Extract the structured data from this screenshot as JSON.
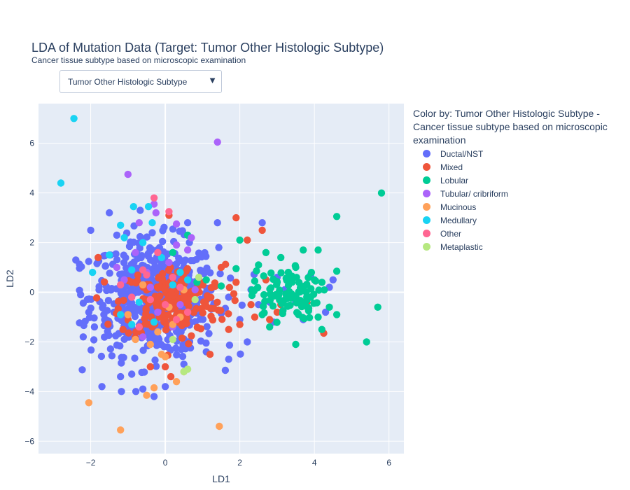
{
  "title": "LDA of Mutation Data (Target: Tumor Other Histologic Subtype)",
  "subtitle": "Cancer tissue subtype based on microscopic examination",
  "dropdown": {
    "selected": "Tumor Other Histologic Subtype",
    "icon": "triangle-down-icon"
  },
  "legend_title": "Color by: Tumor Other Histologic Subtype - Cancer tissue subtype based on microscopic examination",
  "chart_data": {
    "type": "scatter",
    "xlabel": "LD1",
    "ylabel": "LD2",
    "xlim": [
      -3.4,
      6.4
    ],
    "ylim": [
      -6.5,
      7.6
    ],
    "xticks": [
      -2,
      0,
      2,
      4,
      6
    ],
    "yticks": [
      -6,
      -4,
      -2,
      0,
      2,
      4,
      6
    ],
    "grid": true,
    "legend_placement": "right",
    "series": [
      {
        "name": "Ductal/NST",
        "color": "#636efa",
        "cluster": {
          "n": 560,
          "cx": -0.3,
          "sx": 0.85,
          "cy": -0.2,
          "sy": 1.15
        },
        "points": [
          [
            -2.4,
            1.3
          ],
          [
            -2.2,
            -1.8
          ],
          [
            -2.0,
            2.5
          ],
          [
            -1.9,
            -1.4
          ],
          [
            -1.7,
            -3.8
          ],
          [
            -1.5,
            3.2
          ],
          [
            -1.2,
            -3.4
          ],
          [
            -0.9,
            -3.3
          ],
          [
            -0.6,
            -3.9
          ],
          [
            -0.3,
            -4.2
          ],
          [
            0.0,
            -3.8
          ],
          [
            0.5,
            -2.9
          ],
          [
            0.6,
            2.8
          ],
          [
            1.1,
            -2.4
          ],
          [
            1.4,
            2.8
          ],
          [
            1.7,
            -2.7
          ],
          [
            2.0,
            -1.1
          ],
          [
            2.2,
            -2.0
          ],
          [
            2.5,
            -0.5
          ],
          [
            2.6,
            2.8
          ],
          [
            2.9,
            -1.2
          ],
          [
            3.2,
            0.1
          ],
          [
            3.5,
            -0.4
          ],
          [
            3.9,
            0.7
          ],
          [
            4.3,
            -0.8
          ],
          [
            4.4,
            0.2
          ],
          [
            4.5,
            0.5
          ],
          [
            3.7,
            -1.1
          ],
          [
            3.0,
            0.6
          ],
          [
            2.3,
            0.1
          ],
          [
            2.8,
            -0.4
          ],
          [
            1.7,
            -0.2
          ]
        ]
      },
      {
        "name": "Mixed",
        "color": "#ef553b",
        "cluster": {
          "n": 190,
          "cx": 0.2,
          "sx": 0.7,
          "cy": -0.4,
          "sy": 0.75
        },
        "points": [
          [
            -1.8,
            1.4
          ],
          [
            -0.4,
            -3.0
          ],
          [
            0.0,
            -3.0
          ],
          [
            0.1,
            3.1
          ],
          [
            0.15,
            -3.4
          ],
          [
            1.2,
            -2.5
          ],
          [
            1.7,
            -1.5
          ],
          [
            1.9,
            3.0
          ],
          [
            2.0,
            -1.3
          ],
          [
            2.2,
            2.1
          ],
          [
            2.4,
            -1.0
          ],
          [
            2.6,
            2.5
          ],
          [
            2.8,
            -1.1
          ],
          [
            3.0,
            -0.8
          ],
          [
            4.25,
            -1.65
          ],
          [
            3.5,
            -0.2
          ],
          [
            3.8,
            -0.4
          ],
          [
            2.7,
            0.5
          ],
          [
            2.3,
            -0.5
          ],
          [
            1.5,
            1.0
          ],
          [
            1.9,
            0.4
          ],
          [
            3.1,
            -0.5
          ]
        ]
      },
      {
        "name": "Lobular",
        "color": "#00cc96",
        "cluster": {
          "n": 85,
          "cx": 3.2,
          "sx": 0.45,
          "cy": -0.1,
          "sy": 0.5
        },
        "points": [
          [
            0.6,
            2.3
          ],
          [
            0.85,
            0.4
          ],
          [
            1.1,
            0.5
          ],
          [
            1.9,
            0.95
          ],
          [
            2.0,
            2.1
          ],
          [
            2.5,
            1.1
          ],
          [
            2.7,
            1.6
          ],
          [
            2.8,
            -1.4
          ],
          [
            3.1,
            1.4
          ],
          [
            3.5,
            1.0
          ],
          [
            3.5,
            -2.1
          ],
          [
            3.7,
            1.7
          ],
          [
            4.0,
            0.5
          ],
          [
            4.1,
            1.7
          ],
          [
            4.2,
            -1.5
          ],
          [
            4.4,
            -0.6
          ],
          [
            4.6,
            3.05
          ],
          [
            4.6,
            0.85
          ],
          [
            4.6,
            -0.9
          ],
          [
            5.4,
            -2.0
          ],
          [
            5.7,
            -0.6
          ],
          [
            5.8,
            4.0
          ],
          [
            0.4,
            0.8
          ],
          [
            0.2,
            1.6
          ],
          [
            1.5,
            0.25
          ],
          [
            2.4,
            0.45
          ],
          [
            3.9,
            -0.2
          ],
          [
            3.3,
            0.8
          ],
          [
            2.6,
            -0.9
          ],
          [
            3.0,
            0.4
          ],
          [
            4.1,
            -1.0
          ]
        ]
      },
      {
        "name": "Tubular/ cribriform",
        "color": "#ab63fa",
        "points": [
          [
            -1.0,
            4.75
          ],
          [
            1.4,
            6.05
          ],
          [
            -0.3,
            3.55
          ],
          [
            -0.25,
            3.2
          ],
          [
            0.3,
            2.75
          ],
          [
            -0.7,
            2.8
          ],
          [
            0.6,
            1.7
          ],
          [
            -1.3,
            1.0
          ],
          [
            -0.4,
            0.2
          ],
          [
            0.8,
            0.1
          ],
          [
            -0.2,
            -0.8
          ],
          [
            0.4,
            -0.5
          ],
          [
            -0.8,
            1.6
          ],
          [
            0.1,
            1.2
          ],
          [
            -0.5,
            0.8
          ],
          [
            0.7,
            2.2
          ],
          [
            0.3,
            1.9
          ],
          [
            -1.1,
            0.5
          ],
          [
            0.2,
            -1.4
          ],
          [
            -0.6,
            -1.8
          ]
        ]
      },
      {
        "name": "Mucinous",
        "color": "#ffa15a",
        "points": [
          [
            -2.05,
            -4.45
          ],
          [
            -1.2,
            -5.55
          ],
          [
            1.45,
            -5.4
          ],
          [
            -0.5,
            -4.15
          ],
          [
            0.3,
            -3.6
          ],
          [
            -0.3,
            -3.85
          ],
          [
            0.0,
            -2.6
          ],
          [
            -0.2,
            -1.6
          ],
          [
            -0.8,
            -1.9
          ],
          [
            0.4,
            -1.0
          ],
          [
            -0.4,
            -2.1
          ],
          [
            0.2,
            -1.3
          ],
          [
            -1.0,
            -0.9
          ],
          [
            0.5,
            0.1
          ],
          [
            -0.6,
            0.3
          ],
          [
            0.1,
            -0.6
          ],
          [
            -0.1,
            -2.5
          ],
          [
            0.5,
            -3.2
          ]
        ]
      },
      {
        "name": "Medullary",
        "color": "#19d3f3",
        "points": [
          [
            -2.45,
            7.0
          ],
          [
            -2.8,
            4.4
          ],
          [
            -0.85,
            3.45
          ],
          [
            -0.45,
            3.45
          ],
          [
            -1.2,
            2.7
          ],
          [
            -0.35,
            2.8
          ],
          [
            -1.1,
            2.2
          ],
          [
            -0.6,
            2.0
          ],
          [
            -1.5,
            1.5
          ],
          [
            -1.95,
            0.8
          ],
          [
            -0.9,
            0.9
          ],
          [
            0.4,
            0.8
          ],
          [
            -0.1,
            1.4
          ],
          [
            -0.7,
            -0.4
          ],
          [
            0.2,
            0.3
          ],
          [
            -1.2,
            -0.9
          ],
          [
            -0.3,
            -1.2
          ],
          [
            0.6,
            0.5
          ],
          [
            -0.9,
            -1.3
          ]
        ]
      },
      {
        "name": "Other",
        "color": "#ff6692",
        "points": [
          [
            -0.3,
            3.8
          ],
          [
            0.1,
            3.25
          ],
          [
            -0.6,
            0.9
          ],
          [
            -0.5,
            0.7
          ],
          [
            0.2,
            0.6
          ],
          [
            -1.2,
            0.3
          ],
          [
            0.0,
            -0.5
          ],
          [
            -0.4,
            -0.3
          ],
          [
            0.3,
            -1.1
          ],
          [
            -0.7,
            -1.4
          ],
          [
            0.6,
            -0.8
          ],
          [
            -0.2,
            1.6
          ],
          [
            -0.9,
            -0.2
          ],
          [
            0.4,
            0.2
          ]
        ]
      },
      {
        "name": "Metaplastic",
        "color": "#b6e880",
        "points": [
          [
            0.6,
            -3.1
          ],
          [
            0.5,
            -3.2
          ],
          [
            0.2,
            -1.9
          ],
          [
            0.9,
            0.6
          ],
          [
            0.8,
            -0.3
          ]
        ]
      }
    ]
  }
}
